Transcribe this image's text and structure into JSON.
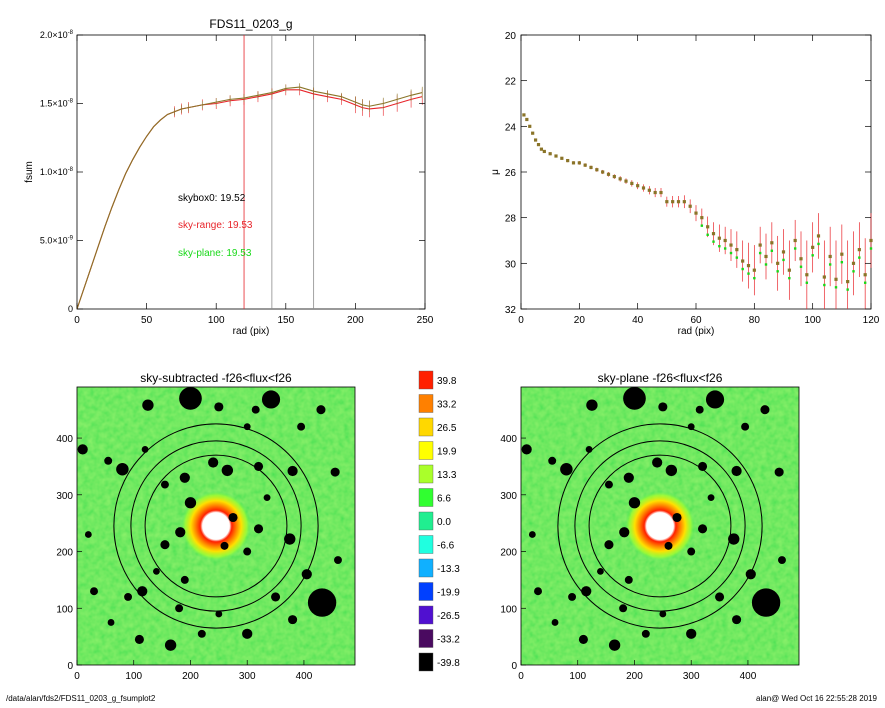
{
  "footer": {
    "path": "/data/alan/fds2/FDS11_0203_g_fsumplot2",
    "user_time": "alan@  Wed Oct 16 22:55:28 2019"
  },
  "colors": {
    "red": "#e8242a",
    "green": "#18d818",
    "olive": "#8a7428",
    "grey": "#8c8c8c"
  },
  "chart_data": [
    {
      "type": "line",
      "title": "FDS11_0203_g",
      "xlabel": "rad (pix)",
      "ylabel": "fsum",
      "xlim": [
        0,
        250
      ],
      "ylim": [
        0,
        2e-08
      ],
      "x_ticks": [
        0,
        50,
        100,
        150,
        200,
        250
      ],
      "y_ticks": [
        {
          "value": 0,
          "label": "0"
        },
        {
          "value": 5e-09,
          "label": "5.0×10",
          "exp": "-9"
        },
        {
          "value": 1e-08,
          "label": "1.0×10",
          "exp": "-8"
        },
        {
          "value": 1.5e-08,
          "label": "1.5×10",
          "exp": "-8"
        },
        {
          "value": 2e-08,
          "label": "2.0×10",
          "exp": "-8"
        }
      ],
      "vlines": [
        {
          "x": 120,
          "color": "red"
        },
        {
          "x": 140,
          "color": "grey"
        },
        {
          "x": 170,
          "color": "grey"
        }
      ],
      "annotations": [
        {
          "text": "skybox0: 19.52",
          "color": "black"
        },
        {
          "text": "sky-range: 19.53",
          "color": "red"
        },
        {
          "text": "sky-plane: 19.53",
          "color": "green"
        }
      ],
      "series": [
        {
          "color": "red",
          "x": [
            0,
            5,
            10,
            15,
            20,
            25,
            30,
            35,
            40,
            45,
            50,
            55,
            60,
            65,
            70,
            75,
            80,
            90,
            100,
            110,
            120,
            130,
            140,
            150,
            160,
            170,
            180,
            190,
            200,
            205,
            210,
            220,
            230,
            240,
            248
          ],
          "y": [
            0,
            1.5e-09,
            3e-09,
            4.5e-09,
            6e-09,
            7.4e-09,
            8.7e-09,
            9.9e-09,
            1.09e-08,
            1.18e-08,
            1.26e-08,
            1.33e-08,
            1.38e-08,
            1.42e-08,
            1.44e-08,
            1.46e-08,
            1.47e-08,
            1.49e-08,
            1.5e-08,
            1.52e-08,
            1.53e-08,
            1.55e-08,
            1.57e-08,
            1.6e-08,
            1.6e-08,
            1.57e-08,
            1.55e-08,
            1.53e-08,
            1.49e-08,
            1.47e-08,
            1.46e-08,
            1.47e-08,
            1.5e-08,
            1.53e-08,
            1.55e-08
          ]
        },
        {
          "color": "olive",
          "x": [
            0,
            5,
            10,
            15,
            20,
            25,
            30,
            35,
            40,
            45,
            50,
            55,
            60,
            65,
            70,
            75,
            80,
            90,
            100,
            110,
            120,
            130,
            140,
            150,
            160,
            170,
            180,
            190,
            200,
            205,
            210,
            220,
            230,
            240,
            248
          ],
          "y": [
            0,
            1.5e-09,
            3e-09,
            4.5e-09,
            6e-09,
            7.4e-09,
            8.7e-09,
            9.9e-09,
            1.09e-08,
            1.18e-08,
            1.26e-08,
            1.33e-08,
            1.38e-08,
            1.42e-08,
            1.44e-08,
            1.46e-08,
            1.47e-08,
            1.49e-08,
            1.51e-08,
            1.53e-08,
            1.54e-08,
            1.56e-08,
            1.58e-08,
            1.61e-08,
            1.62e-08,
            1.59e-08,
            1.57e-08,
            1.55e-08,
            1.51e-08,
            1.49e-08,
            1.48e-08,
            1.5e-08,
            1.53e-08,
            1.56e-08,
            1.58e-08
          ]
        }
      ]
    },
    {
      "type": "scatter",
      "title": "",
      "xlabel": "rad (pix)",
      "ylabel": "μ",
      "xlim": [
        0,
        120
      ],
      "ylim": [
        32,
        20
      ],
      "y_reversed": true,
      "x_ticks": [
        0,
        20,
        40,
        60,
        80,
        100,
        120
      ],
      "y_ticks": [
        20,
        22,
        24,
        26,
        28,
        30,
        32
      ],
      "series": [
        {
          "color": "olive",
          "x": [
            1,
            2,
            3,
            4,
            5,
            6,
            7,
            8,
            10,
            12,
            14,
            16,
            18,
            20,
            22,
            24,
            26,
            28,
            30,
            32,
            34,
            36,
            38,
            40,
            42,
            44,
            46,
            48,
            50,
            52,
            54,
            56,
            58,
            60,
            62,
            64,
            66,
            68,
            70,
            72,
            74,
            76,
            78,
            80,
            82,
            84,
            86,
            88,
            90,
            92,
            94,
            96,
            98,
            100,
            102,
            104,
            106,
            108,
            110,
            112,
            114,
            116,
            118,
            120
          ],
          "y": [
            23.5,
            23.7,
            24.0,
            24.3,
            24.6,
            24.8,
            25.0,
            25.1,
            25.2,
            25.3,
            25.4,
            25.5,
            25.6,
            25.6,
            25.7,
            25.8,
            25.9,
            26.0,
            26.1,
            26.2,
            26.3,
            26.4,
            26.5,
            26.6,
            26.7,
            26.8,
            26.9,
            26.9,
            27.3,
            27.3,
            27.3,
            27.3,
            27.5,
            27.8,
            28.0,
            28.4,
            28.7,
            28.9,
            29.0,
            29.2,
            29.4,
            29.9,
            30.1,
            30.3,
            29.2,
            29.7,
            29.1,
            30.0,
            29.5,
            30.3,
            29.0,
            29.8,
            30.5,
            29.3,
            28.8,
            30.6,
            29.7,
            30.7,
            29.6,
            30.8,
            30.0,
            29.4,
            30.5,
            29.0
          ],
          "yerr": [
            0.05,
            0.05,
            0.05,
            0.05,
            0.05,
            0.05,
            0.05,
            0.05,
            0.06,
            0.06,
            0.06,
            0.07,
            0.07,
            0.08,
            0.08,
            0.08,
            0.09,
            0.09,
            0.1,
            0.1,
            0.12,
            0.12,
            0.14,
            0.15,
            0.16,
            0.18,
            0.2,
            0.2,
            0.22,
            0.25,
            0.25,
            0.28,
            0.3,
            0.35,
            0.4,
            0.45,
            0.5,
            0.6,
            0.6,
            0.7,
            0.8,
            0.9,
            1.0,
            1.1,
            0.8,
            1.0,
            0.9,
            1.2,
            1.0,
            1.3,
            0.9,
            1.2,
            1.5,
            1.1,
            1.0,
            1.6,
            1.3,
            1.7,
            1.3,
            1.8,
            1.4,
            1.2,
            1.6,
            1.2
          ]
        }
      ]
    },
    {
      "type": "heatmap",
      "title": "sky-subtracted -f26<flux<f26",
      "xlim": [
        0,
        490
      ],
      "ylim": [
        0,
        490
      ],
      "x_ticks": [
        0,
        100,
        200,
        300,
        400
      ],
      "y_ticks": [
        0,
        100,
        200,
        300,
        400
      ],
      "ellipse_center": [
        245,
        245
      ],
      "ellipse_radii": [
        125,
        150,
        180
      ]
    },
    {
      "type": "heatmap",
      "title": "sky-plane -f26<flux<f26",
      "xlim": [
        0,
        490
      ],
      "ylim": [
        0,
        490
      ],
      "x_ticks": [
        0,
        100,
        200,
        300,
        400
      ],
      "y_ticks": [
        0,
        100,
        200,
        300,
        400
      ],
      "ellipse_center": [
        245,
        245
      ],
      "ellipse_radii": [
        125,
        150,
        180
      ]
    }
  ],
  "colorbar": {
    "labels": [
      "39.8",
      "33.2",
      "26.5",
      "19.9",
      "13.3",
      "6.6",
      "0.0",
      "-6.6",
      "-13.3",
      "-19.9",
      "-26.5",
      "-33.2",
      "-39.8"
    ],
    "colors": [
      "#ff2000",
      "#ff8000",
      "#ffd800",
      "#ffff00",
      "#aaff2a",
      "#30ff30",
      "#20ee90",
      "#20ffe0",
      "#10b0ff",
      "#0040ff",
      "#5010d0",
      "#4a0a60",
      "#000000"
    ]
  }
}
